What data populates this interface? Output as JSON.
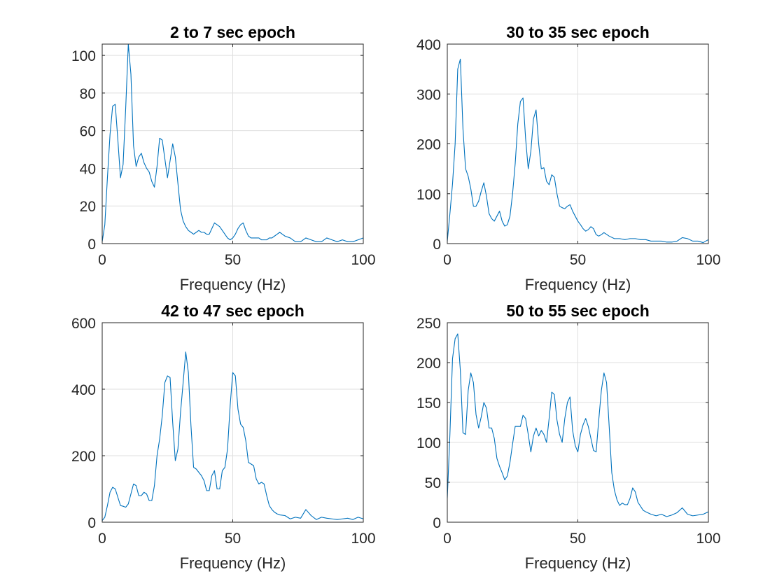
{
  "figure": {
    "background": "#ffffff",
    "line_color": "#0072BD",
    "axis_color": "#262626",
    "grid_color": "#dfdfdf"
  },
  "chart_data": [
    {
      "type": "line",
      "title": "2 to 7 sec epoch",
      "xlabel": "Frequency (Hz)",
      "ylabel": "",
      "xlim": [
        0,
        100
      ],
      "ylim": [
        0,
        106
      ],
      "xticks": [
        0,
        50,
        100
      ],
      "yticks": [
        0,
        20,
        40,
        60,
        80,
        100
      ],
      "grid": true,
      "x": [
        0,
        1,
        2,
        3,
        4,
        5,
        6,
        7,
        8,
        9,
        10,
        11,
        12,
        13,
        14,
        15,
        16,
        17,
        18,
        19,
        20,
        21,
        22,
        23,
        24,
        25,
        26,
        27,
        28,
        29,
        30,
        31,
        32,
        33,
        34,
        35,
        36,
        37,
        38,
        39,
        40,
        41,
        42,
        43,
        44,
        45,
        46,
        47,
        48,
        49,
        50,
        51,
        52,
        53,
        54,
        55,
        56,
        57,
        58,
        59,
        60,
        61,
        62,
        63,
        64,
        65,
        66,
        67,
        68,
        69,
        70,
        72,
        74,
        76,
        78,
        80,
        82,
        84,
        86,
        88,
        90,
        92,
        94,
        96,
        98,
        100
      ],
      "y": [
        1,
        10,
        35,
        58,
        73,
        74,
        55,
        35,
        42,
        72,
        106,
        90,
        52,
        41,
        46,
        48,
        43,
        40,
        38,
        33,
        30,
        41,
        56,
        55,
        45,
        35,
        44,
        53,
        46,
        32,
        18,
        12,
        9,
        7,
        6,
        5,
        6,
        7,
        6,
        6,
        5,
        5,
        8,
        11,
        10,
        9,
        7,
        5,
        3,
        2,
        3,
        5,
        8,
        10,
        11,
        7,
        4,
        3,
        3,
        3,
        3,
        2,
        2,
        2,
        3,
        3,
        4,
        5,
        6,
        5,
        4,
        3,
        1,
        1,
        3,
        2,
        1,
        1,
        3,
        2,
        1,
        2,
        1,
        1,
        2,
        3
      ]
    },
    {
      "type": "line",
      "title": "30 to 35 sec epoch",
      "xlabel": "Frequency (Hz)",
      "ylabel": "",
      "xlim": [
        0,
        100
      ],
      "ylim": [
        0,
        400
      ],
      "xticks": [
        0,
        50,
        100
      ],
      "yticks": [
        0,
        100,
        200,
        300,
        400
      ],
      "grid": true,
      "x": [
        0,
        1,
        2,
        3,
        4,
        5,
        6,
        7,
        8,
        9,
        10,
        11,
        12,
        13,
        14,
        15,
        16,
        17,
        18,
        19,
        20,
        21,
        22,
        23,
        24,
        25,
        26,
        27,
        28,
        29,
        30,
        31,
        32,
        33,
        34,
        35,
        36,
        37,
        38,
        39,
        40,
        41,
        42,
        43,
        44,
        45,
        46,
        47,
        48,
        49,
        50,
        51,
        52,
        53,
        54,
        55,
        56,
        57,
        58,
        59,
        60,
        62,
        64,
        66,
        68,
        70,
        72,
        74,
        76,
        78,
        80,
        82,
        84,
        86,
        88,
        90,
        92,
        94,
        96,
        98,
        100
      ],
      "y": [
        5,
        60,
        120,
        200,
        350,
        370,
        230,
        150,
        135,
        110,
        75,
        75,
        85,
        105,
        122,
        95,
        60,
        50,
        45,
        55,
        65,
        45,
        35,
        38,
        55,
        100,
        160,
        240,
        285,
        292,
        210,
        150,
        185,
        250,
        268,
        200,
        150,
        152,
        125,
        118,
        138,
        133,
        100,
        75,
        72,
        70,
        75,
        78,
        65,
        55,
        45,
        38,
        30,
        25,
        28,
        34,
        30,
        18,
        15,
        18,
        22,
        15,
        10,
        10,
        8,
        10,
        10,
        8,
        8,
        5,
        5,
        5,
        3,
        3,
        5,
        12,
        10,
        5,
        5,
        2,
        8
      ]
    },
    {
      "type": "line",
      "title": "42 to 47 sec epoch",
      "xlabel": "Frequency (Hz)",
      "ylabel": "",
      "xlim": [
        0,
        100
      ],
      "ylim": [
        0,
        600
      ],
      "xticks": [
        0,
        50,
        100
      ],
      "yticks": [
        0,
        200,
        400,
        600
      ],
      "grid": true,
      "x": [
        0,
        1,
        2,
        3,
        4,
        5,
        6,
        7,
        8,
        9,
        10,
        11,
        12,
        13,
        14,
        15,
        16,
        17,
        18,
        19,
        20,
        21,
        22,
        23,
        24,
        25,
        26,
        27,
        28,
        29,
        30,
        31,
        32,
        33,
        34,
        35,
        36,
        37,
        38,
        39,
        40,
        41,
        42,
        43,
        44,
        45,
        46,
        47,
        48,
        49,
        50,
        51,
        52,
        53,
        54,
        55,
        56,
        57,
        58,
        59,
        60,
        61,
        62,
        63,
        64,
        65,
        66,
        67,
        68,
        70,
        72,
        74,
        76,
        78,
        80,
        82,
        84,
        86,
        88,
        90,
        92,
        94,
        96,
        98,
        100
      ],
      "y": [
        5,
        15,
        50,
        90,
        105,
        100,
        75,
        50,
        48,
        45,
        55,
        85,
        115,
        110,
        80,
        80,
        90,
        85,
        65,
        65,
        110,
        200,
        250,
        320,
        420,
        440,
        435,
        300,
        185,
        220,
        330,
        420,
        512,
        450,
        290,
        165,
        160,
        150,
        140,
        125,
        95,
        95,
        140,
        155,
        100,
        100,
        155,
        165,
        220,
        350,
        450,
        440,
        340,
        295,
        285,
        245,
        180,
        175,
        170,
        130,
        115,
        120,
        115,
        80,
        50,
        38,
        30,
        25,
        22,
        20,
        10,
        15,
        12,
        38,
        20,
        8,
        15,
        12,
        10,
        8,
        10,
        12,
        8,
        15,
        10
      ]
    },
    {
      "type": "line",
      "title": "50 to 55 sec epoch",
      "xlabel": "Frequency (Hz)",
      "ylabel": "",
      "xlim": [
        0,
        100
      ],
      "ylim": [
        0,
        250
      ],
      "xticks": [
        0,
        50,
        100
      ],
      "yticks": [
        0,
        50,
        100,
        150,
        200,
        250
      ],
      "grid": true,
      "x": [
        0,
        1,
        2,
        3,
        4,
        5,
        6,
        7,
        8,
        9,
        10,
        11,
        12,
        13,
        14,
        15,
        16,
        17,
        18,
        19,
        20,
        21,
        22,
        23,
        24,
        25,
        26,
        27,
        28,
        29,
        30,
        31,
        32,
        33,
        34,
        35,
        36,
        37,
        38,
        39,
        40,
        41,
        42,
        43,
        44,
        45,
        46,
        47,
        48,
        49,
        50,
        51,
        52,
        53,
        54,
        55,
        56,
        57,
        58,
        59,
        60,
        61,
        62,
        63,
        64,
        65,
        66,
        67,
        68,
        69,
        70,
        71,
        72,
        73,
        74,
        75,
        76,
        78,
        80,
        82,
        84,
        86,
        88,
        90,
        92,
        94,
        96,
        98,
        100
      ],
      "y": [
        30,
        110,
        205,
        230,
        236,
        190,
        112,
        110,
        165,
        187,
        175,
        135,
        118,
        132,
        150,
        143,
        118,
        118,
        105,
        80,
        70,
        62,
        53,
        58,
        75,
        98,
        120,
        120,
        120,
        134,
        130,
        110,
        88,
        108,
        118,
        108,
        115,
        110,
        100,
        130,
        163,
        160,
        128,
        110,
        100,
        130,
        150,
        157,
        115,
        96,
        88,
        110,
        122,
        130,
        120,
        105,
        90,
        88,
        128,
        165,
        187,
        175,
        120,
        62,
        40,
        28,
        21,
        24,
        22,
        22,
        30,
        43,
        38,
        25,
        20,
        15,
        13,
        10,
        8,
        10,
        7,
        9,
        12,
        18,
        10,
        8,
        9,
        10,
        13
      ]
    }
  ]
}
